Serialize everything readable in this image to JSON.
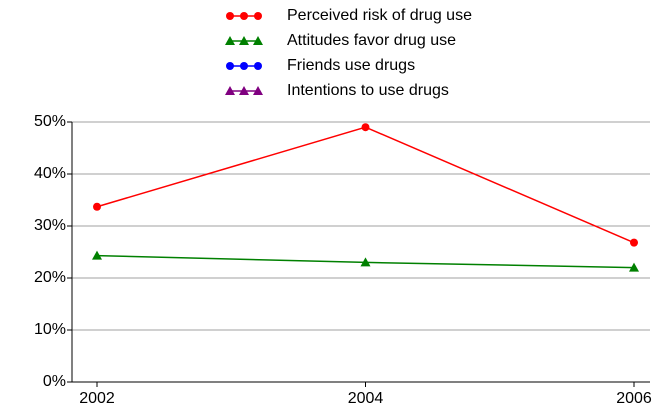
{
  "chart_data": {
    "type": "line",
    "categories": [
      "2002",
      "2004",
      "2006"
    ],
    "series": [
      {
        "name": "Perceived risk of drug use",
        "color": "#ff0000",
        "marker": "circle",
        "values": [
          33.7,
          49,
          26.8
        ]
      },
      {
        "name": "Attitudes favor drug use",
        "color": "#008000",
        "marker": "triangle",
        "values": [
          24.3,
          23,
          22
        ]
      },
      {
        "name": "Friends use drugs",
        "color": "#0000ff",
        "marker": "circle",
        "values": [
          null,
          null,
          null
        ]
      },
      {
        "name": "Intentions to use drugs",
        "color": "#800080",
        "marker": "triangle",
        "values": [
          null,
          null,
          null
        ]
      }
    ],
    "ylim": [
      0,
      50
    ],
    "yticks": [
      {
        "value": 0,
        "label": "0%"
      },
      {
        "value": 10,
        "label": "10%"
      },
      {
        "value": 20,
        "label": "20%"
      },
      {
        "value": 30,
        "label": "30%"
      },
      {
        "value": 40,
        "label": "40%"
      },
      {
        "value": 50,
        "label": "50%"
      }
    ],
    "grid": true,
    "legend": "top"
  }
}
